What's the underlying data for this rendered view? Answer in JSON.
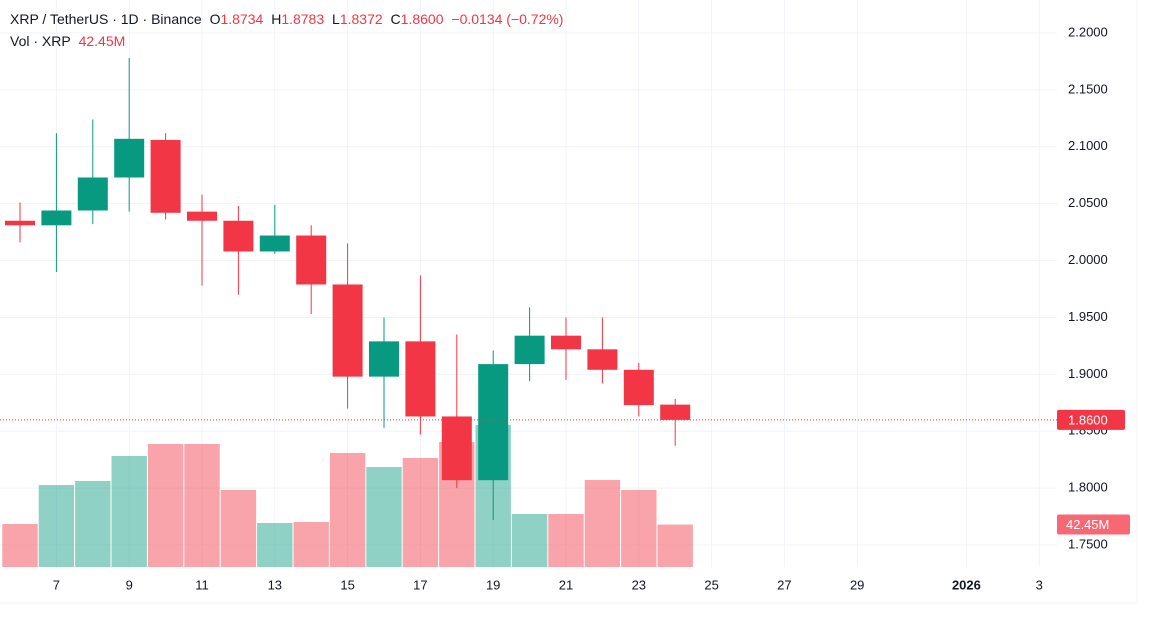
{
  "chart_data": {
    "type": "candlestick",
    "title": "XRP / TetherUS · 1D · Binance",
    "categories": [
      null,
      "7",
      null,
      "9",
      null,
      "11",
      null,
      "13",
      null,
      "15",
      null,
      "17",
      null,
      "19",
      null,
      "21",
      null,
      "23",
      null,
      "25",
      null,
      "27",
      null,
      "29",
      null,
      null,
      "2026",
      null,
      "3"
    ],
    "open": [
      2.035,
      2.031,
      2.044,
      2.073,
      2.106,
      2.043,
      2.035,
      2.008,
      2.022,
      1.979,
      1.898,
      1.929,
      1.863,
      1.807,
      1.909,
      1.934,
      1.922,
      1.904,
      1.8734,
      null,
      null,
      null,
      null,
      null,
      null,
      null,
      null,
      null,
      null
    ],
    "high": [
      2.051,
      2.112,
      2.124,
      2.178,
      2.112,
      2.058,
      2.048,
      2.049,
      2.031,
      2.015,
      1.95,
      1.987,
      1.935,
      1.921,
      1.959,
      1.95,
      1.95,
      1.91,
      1.8783,
      null,
      null,
      null,
      null,
      null,
      null,
      null,
      null,
      null,
      null
    ],
    "low": [
      2.016,
      1.99,
      2.032,
      2.043,
      2.036,
      1.978,
      1.97,
      2.006,
      1.953,
      1.87,
      1.853,
      1.847,
      1.8,
      1.772,
      1.894,
      1.895,
      1.892,
      1.863,
      1.8372,
      null,
      null,
      null,
      null,
      null,
      null,
      null,
      null,
      null,
      null
    ],
    "close": [
      2.031,
      2.044,
      2.073,
      2.107,
      2.042,
      2.035,
      2.008,
      2.022,
      1.979,
      1.898,
      1.929,
      1.863,
      1.807,
      1.909,
      1.934,
      1.922,
      1.904,
      1.873,
      1.86,
      null,
      null,
      null,
      null,
      null,
      null,
      null,
      null,
      null,
      null
    ],
    "close_labels": [
      null,
      null,
      null,
      null,
      null,
      null,
      null,
      null,
      null,
      null,
      null,
      null,
      null,
      null,
      null,
      null,
      null,
      null,
      "1.8600",
      null,
      null,
      null,
      null,
      null,
      null,
      null,
      null,
      null,
      null
    ],
    "ohlc_labels": [
      "O",
      "H",
      "L",
      "C"
    ],
    "change_label": "−0.0134 (−0.72%)",
    "volume": {
      "name": "Vol · XRP",
      "values": [
        43,
        82,
        86,
        111,
        123,
        123,
        77,
        44,
        45,
        114,
        100,
        109,
        125,
        142,
        53,
        53,
        87,
        77,
        42.45,
        null,
        null,
        null,
        null,
        null,
        null,
        null,
        null,
        null,
        null
      ],
      "value_labels": [
        null,
        null,
        null,
        null,
        null,
        null,
        null,
        null,
        null,
        null,
        null,
        null,
        null,
        null,
        null,
        null,
        null,
        null,
        "42.45M",
        null,
        null,
        null,
        null,
        null,
        null,
        null,
        null,
        null,
        null
      ]
    },
    "up_color": "#089981",
    "down_color": "#f23645",
    "ylim": [
      1.7307,
      2.229
    ],
    "yticks": [
      {
        "value": 1.75,
        "label": "1.7500"
      },
      {
        "value": 1.8,
        "label": "1.8000"
      },
      {
        "value": 1.85,
        "label": "1.8500"
      },
      {
        "value": 1.9,
        "label": "1.9000"
      },
      {
        "value": 1.95,
        "label": "1.9500"
      },
      {
        "value": 2.0,
        "label": "2.0000"
      },
      {
        "value": 2.05,
        "label": "2.0500"
      },
      {
        "value": 2.1,
        "label": "2.1000"
      },
      {
        "value": 2.15,
        "label": "2.1500"
      },
      {
        "value": 2.2,
        "label": "2.2000"
      }
    ],
    "grid": true
  }
}
